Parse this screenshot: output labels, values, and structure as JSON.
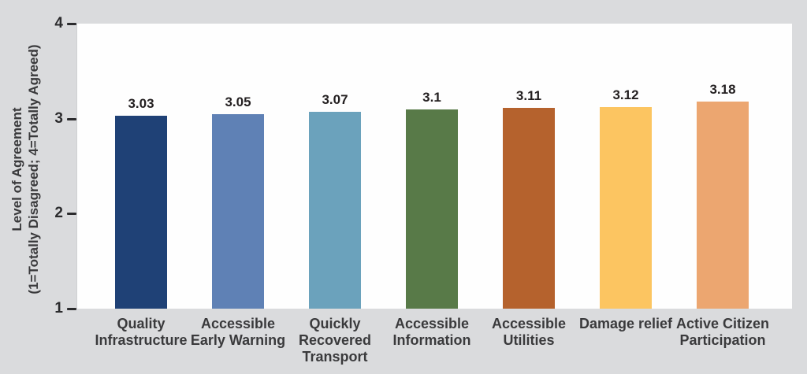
{
  "chart_data": {
    "type": "bar",
    "title": "",
    "categories": [
      "Quality Infrastructure",
      "Accessible Early Warning",
      "Quickly Recovered Transport",
      "Accessible Information",
      "Accessible Utilities",
      "Damage relief",
      "Active Citizen Participation"
    ],
    "category_display_lines": [
      [
        "Quality",
        "Infrastructure"
      ],
      [
        "Accessible",
        "Early Warning"
      ],
      [
        "Quickly",
        "Recovered",
        "Transport"
      ],
      [
        "Accessible",
        "Information"
      ],
      [
        "Accessible",
        "Utilities"
      ],
      [
        "Damage relief"
      ],
      [
        "Active Citizen",
        "Participation"
      ]
    ],
    "values": [
      3.03,
      3.05,
      3.07,
      3.1,
      3.11,
      3.12,
      3.18
    ],
    "value_labels": [
      "3.03",
      "3.05",
      "3.07",
      "3.1",
      "3.11",
      "3.12",
      "3.18"
    ],
    "bar_colors": [
      "#1f4176",
      "#5f81b5",
      "#6ba2bc",
      "#587a48",
      "#b5622d",
      "#fcc561",
      "#eca670"
    ],
    "ylabel_line1": "Level of Agreement",
    "ylabel_line2": "(1=Totally Disagreed; 4=Totally Agreed)",
    "xlabel": "",
    "ylim": [
      1,
      4
    ],
    "yticks": [
      1,
      2,
      3,
      4
    ],
    "grid": false,
    "legend": "none"
  },
  "colors": {
    "background": "#dadbdd",
    "plot_background": "#fefefe",
    "tick_text": "#2b2b2d",
    "value_label": "#231f20",
    "category_label": "#3a3a3c"
  }
}
